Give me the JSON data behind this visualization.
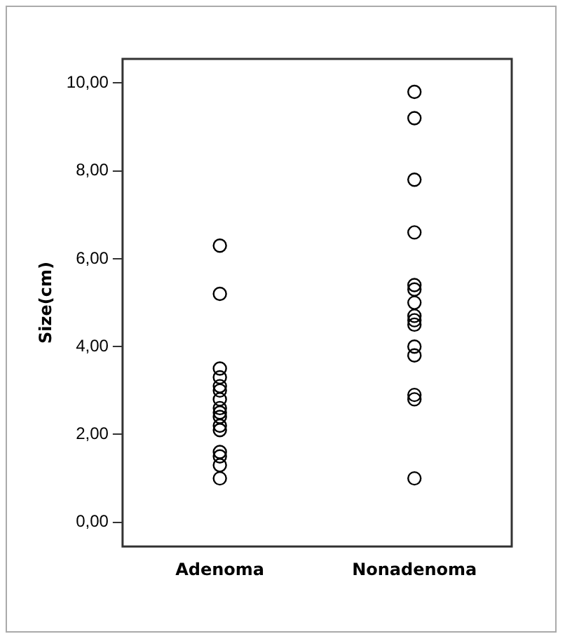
{
  "chart_data": {
    "type": "scatter",
    "ylabel": "Size(cm)",
    "categories": [
      "Adenoma",
      "Nonadenoma"
    ],
    "series": [
      {
        "color": "#000000",
        "x": [
          "Adenoma",
          "Adenoma",
          "Adenoma",
          "Adenoma",
          "Adenoma",
          "Adenoma",
          "Adenoma",
          "Adenoma",
          "Adenoma",
          "Adenoma",
          "Adenoma",
          "Adenoma",
          "Adenoma",
          "Adenoma",
          "Adenoma",
          "Adenoma",
          "Nonadenoma",
          "Nonadenoma",
          "Nonadenoma",
          "Nonadenoma",
          "Nonadenoma",
          "Nonadenoma",
          "Nonadenoma",
          "Nonadenoma",
          "Nonadenoma",
          "Nonadenoma",
          "Nonadenoma",
          "Nonadenoma",
          "Nonadenoma",
          "Nonadenoma",
          "Nonadenoma"
        ],
        "values": [
          6.3,
          5.2,
          3.5,
          3.3,
          3.1,
          3.0,
          2.8,
          2.6,
          2.5,
          2.4,
          2.2,
          2.1,
          1.6,
          1.5,
          1.3,
          1.0,
          9.8,
          9.2,
          7.8,
          6.6,
          5.4,
          5.3,
          5.0,
          4.7,
          4.6,
          4.5,
          4.0,
          3.8,
          2.9,
          2.8,
          1.0
        ]
      }
    ],
    "ylim": [
      -0.55,
      10.55
    ],
    "yticks": [
      {
        "value": 0,
        "label": "0,00"
      },
      {
        "value": 2,
        "label": "2,00"
      },
      {
        "value": 4,
        "label": "4,00"
      },
      {
        "value": 6,
        "label": "6,00"
      },
      {
        "value": 8,
        "label": "8,00"
      },
      {
        "value": 10,
        "label": "10,00"
      }
    ],
    "grid": false,
    "legend": false,
    "marker": "circle"
  }
}
